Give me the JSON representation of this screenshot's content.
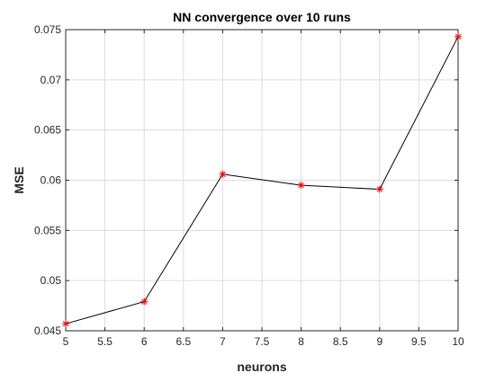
{
  "chart_data": {
    "type": "line",
    "title": "NN convergence over 10 runs",
    "xlabel": "neurons",
    "ylabel": "MSE",
    "xlim": [
      5,
      10
    ],
    "ylim": [
      0.045,
      0.075
    ],
    "x_ticks": [
      "5",
      "5.5",
      "6",
      "6.5",
      "7",
      "7.5",
      "8",
      "8.5",
      "9",
      "9.5",
      "10"
    ],
    "y_ticks": [
      "0.045",
      "0.05",
      "0.055",
      "0.06",
      "0.065",
      "0.07",
      "0.075"
    ],
    "grid": true,
    "series": [
      {
        "x": [
          5,
          6,
          7,
          8,
          9,
          10
        ],
        "y": [
          0.0457,
          0.0479,
          0.0606,
          0.0595,
          0.0591,
          0.0743
        ],
        "line_color": "#000000",
        "marker": "*",
        "marker_color": "#ff0000"
      }
    ]
  }
}
